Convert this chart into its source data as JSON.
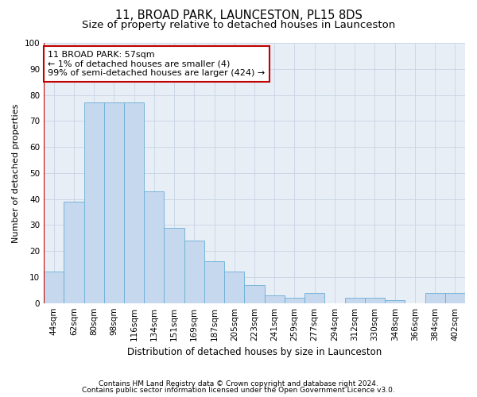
{
  "title1": "11, BROAD PARK, LAUNCESTON, PL15 8DS",
  "title2": "Size of property relative to detached houses in Launceston",
  "xlabel": "Distribution of detached houses by size in Launceston",
  "ylabel": "Number of detached properties",
  "categories": [
    "44sqm",
    "62sqm",
    "80sqm",
    "98sqm",
    "116sqm",
    "134sqm",
    "151sqm",
    "169sqm",
    "187sqm",
    "205sqm",
    "223sqm",
    "241sqm",
    "259sqm",
    "277sqm",
    "294sqm",
    "312sqm",
    "330sqm",
    "348sqm",
    "366sqm",
    "384sqm",
    "402sqm"
  ],
  "values": [
    12,
    39,
    77,
    77,
    77,
    43,
    29,
    24,
    16,
    12,
    7,
    3,
    2,
    4,
    0,
    2,
    2,
    1,
    0,
    4,
    4
  ],
  "bar_color": "#c5d8ee",
  "bar_edge_color": "#6aaed6",
  "highlight_color": "#c00000",
  "annotation_line1": "11 BROAD PARK: 57sqm",
  "annotation_line2": "← 1% of detached houses are smaller (4)",
  "annotation_line3": "99% of semi-detached houses are larger (424) →",
  "ylim": [
    0,
    100
  ],
  "yticks": [
    0,
    10,
    20,
    30,
    40,
    50,
    60,
    70,
    80,
    90,
    100
  ],
  "footnote1": "Contains HM Land Registry data © Crown copyright and database right 2024.",
  "footnote2": "Contains public sector information licensed under the Open Government Licence v3.0.",
  "title1_fontsize": 10.5,
  "title2_fontsize": 9.5,
  "xlabel_fontsize": 8.5,
  "ylabel_fontsize": 8,
  "tick_fontsize": 7.5,
  "annotation_fontsize": 8,
  "footnote_fontsize": 6.5
}
